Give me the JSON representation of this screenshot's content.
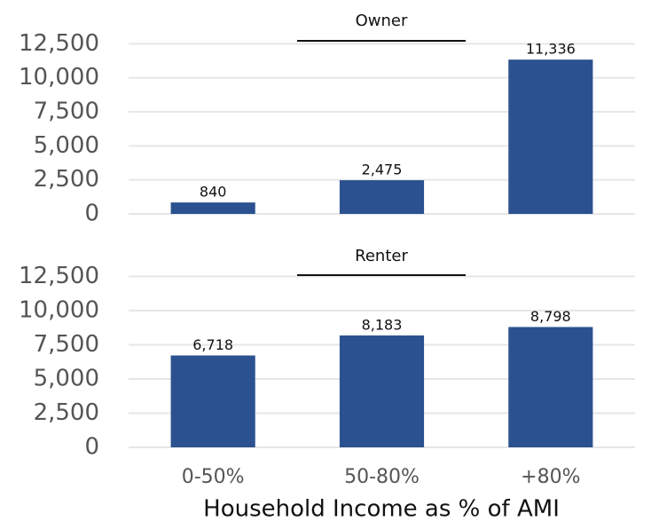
{
  "chart_data": [
    {
      "type": "bar",
      "title": "Owner",
      "categories": [
        "0-50%",
        "50-80%",
        "+80%"
      ],
      "values": [
        840,
        2475,
        11336
      ],
      "value_labels": [
        "840",
        "2,475",
        "11,336"
      ],
      "color": "#2b5190",
      "ylim": [
        0,
        13500
      ],
      "yticks": [
        0,
        {
          "value": 2500,
          "label": "2,500"
        },
        {
          "value": 5000,
          "label": "5,000"
        },
        {
          "value": 7500,
          "label": "7,500"
        },
        {
          "value": 10000,
          "label": "10,000"
        },
        {
          "value": 12500,
          "label": "12,500"
        }
      ],
      "grid": true
    },
    {
      "type": "bar",
      "title": "Renter",
      "categories": [
        "0-50%",
        "50-80%",
        "+80%"
      ],
      "values": [
        6718,
        8183,
        8798
      ],
      "value_labels": [
        "6,718",
        "8,183",
        "8,798"
      ],
      "color": "#2b5190",
      "ylim": [
        0,
        13500
      ],
      "yticks": [
        0,
        {
          "value": 2500,
          "label": "2,500"
        },
        {
          "value": 5000,
          "label": "5,000"
        },
        {
          "value": 7500,
          "label": "7,500"
        },
        {
          "value": 10000,
          "label": "10,000"
        },
        {
          "value": 12500,
          "label": "12,500"
        }
      ],
      "grid": true,
      "x_label": "Household Income as % of AMI"
    }
  ]
}
